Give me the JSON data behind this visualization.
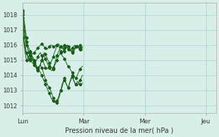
{
  "title": "Pression niveau de la mer( hPa )",
  "ylabel_ticks": [
    1012,
    1013,
    1014,
    1015,
    1016,
    1017,
    1018
  ],
  "xtick_labels": [
    "Lun",
    "Mar",
    "Mer",
    "Jeu"
  ],
  "xtick_positions": [
    0,
    48,
    96,
    144
  ],
  "ylim": [
    1011.5,
    1018.8
  ],
  "xlim": [
    0,
    152
  ],
  "background_color": "#d8eee8",
  "grid_color": "#aad4cc",
  "line_color": "#1a5c1a",
  "lines": [
    [
      1018.2,
      1017.8,
      1017.2,
      1016.5,
      1016.0,
      1015.8,
      1015.6,
      1015.5,
      1015.4,
      1015.5,
      1015.6,
      1015.7,
      1015.8,
      1015.9,
      1016.0,
      1016.1,
      1016.0,
      1015.9,
      1015.8,
      1015.7,
      1015.8,
      1015.9,
      1016.0,
      1016.0,
      1015.9,
      1015.9,
      1016.0,
      1016.0,
      1016.1,
      1016.0,
      1015.9,
      1015.8,
      1015.9,
      1016.0,
      1015.9,
      1015.8,
      1015.7,
      1015.6,
      1015.7,
      1015.8,
      1015.9,
      1016.0,
      1015.9,
      1015.8,
      1015.9,
      1016.0,
      1015.9,
      1015.8
    ],
    [
      1018.3,
      1017.5,
      1016.8,
      1016.2,
      1015.8,
      1015.5,
      1015.3,
      1015.2,
      1015.0,
      1014.9,
      1014.9,
      1015.0,
      1015.2,
      1015.4,
      1015.5,
      1015.3,
      1015.0,
      1014.7,
      1014.5,
      1014.4,
      1014.5,
      1014.6,
      1014.8,
      1015.0,
      1015.2,
      1015.5,
      1015.7,
      1016.0,
      1016.0,
      1015.8,
      1015.6,
      1015.5,
      1015.6,
      1015.8,
      1015.9,
      1016.0,
      1015.9,
      1015.8,
      1015.7,
      1015.6,
      1015.7,
      1015.8,
      1015.9,
      1016.0,
      1015.8,
      1015.7,
      1015.6,
      1015.7
    ],
    [
      1018.0,
      1016.8,
      1016.0,
      1015.5,
      1015.2,
      1015.0,
      1015.1,
      1015.3,
      1015.2,
      1015.0,
      1014.8,
      1014.6,
      1014.5,
      1014.6,
      1014.7,
      1014.5,
      1014.3,
      1014.0,
      1013.7,
      1013.5,
      1013.3,
      1013.2,
      1013.0,
      1012.8,
      1012.5,
      1012.3,
      1012.2,
      1012.2,
      1012.4,
      1012.6,
      1013.0,
      1013.4,
      1013.6,
      1013.8,
      1013.5,
      1013.3,
      1013.2,
      1013.5,
      1013.8,
      1014.0,
      1013.7,
      1013.5,
      1013.4,
      1013.6,
      1013.5,
      1013.4,
      1013.3,
      1013.5
    ],
    [
      1018.1,
      1017.2,
      1016.5,
      1016.0,
      1015.8,
      1015.5,
      1015.3,
      1015.2,
      1015.0,
      1014.8,
      1014.6,
      1014.4,
      1014.3,
      1014.5,
      1014.7,
      1015.0,
      1015.3,
      1015.5,
      1015.4,
      1015.2,
      1015.0,
      1014.8,
      1014.6,
      1014.5,
      1014.4,
      1014.6,
      1014.8,
      1015.0,
      1015.2,
      1015.4,
      1015.5,
      1015.3,
      1015.2,
      1015.1,
      1014.9,
      1014.7,
      1014.6,
      1014.5,
      1014.3,
      1014.2,
      1014.0,
      1013.9,
      1013.8,
      1014.0,
      1014.2,
      1014.4,
      1014.5,
      1014.6
    ],
    [
      1017.8,
      1016.2,
      1015.5,
      1015.0,
      1015.1,
      1015.3,
      1015.5,
      1015.4,
      1015.2,
      1015.0,
      1014.8,
      1014.6,
      1014.4,
      1014.5,
      1014.7,
      1015.0,
      1015.2,
      1015.3,
      1015.1,
      1014.9,
      1014.7,
      1014.5,
      1014.4,
      1014.3,
      1014.5,
      1014.7,
      1015.0,
      1015.3,
      1015.5,
      1015.7,
      1015.9,
      1015.8,
      1015.7,
      1015.6,
      1015.8,
      1016.0,
      1015.9,
      1015.7,
      1015.6,
      1015.5,
      1015.6,
      1015.7,
      1015.9,
      1016.0,
      1015.9,
      1015.8,
      1015.7,
      1015.9
    ],
    [
      1016.5,
      1016.2,
      1015.8,
      1015.5,
      1015.3,
      1015.2,
      1015.0,
      1014.9,
      1014.8,
      1014.7,
      1014.6,
      1014.5,
      1014.4,
      1014.3,
      1014.2,
      1014.0,
      1013.8,
      1013.6,
      1013.4,
      1013.2,
      1013.0,
      1012.8,
      1012.6,
      1012.4,
      1012.3,
      1012.2,
      1012.2,
      1012.3,
      1012.5,
      1012.8,
      1013.0,
      1013.2,
      1013.5,
      1013.7,
      1013.5,
      1013.3,
      1013.2,
      1013.5,
      1013.7,
      1013.9,
      1013.7,
      1013.5,
      1013.4,
      1013.3,
      1013.5,
      1013.7,
      1013.8,
      1014.0
    ]
  ]
}
